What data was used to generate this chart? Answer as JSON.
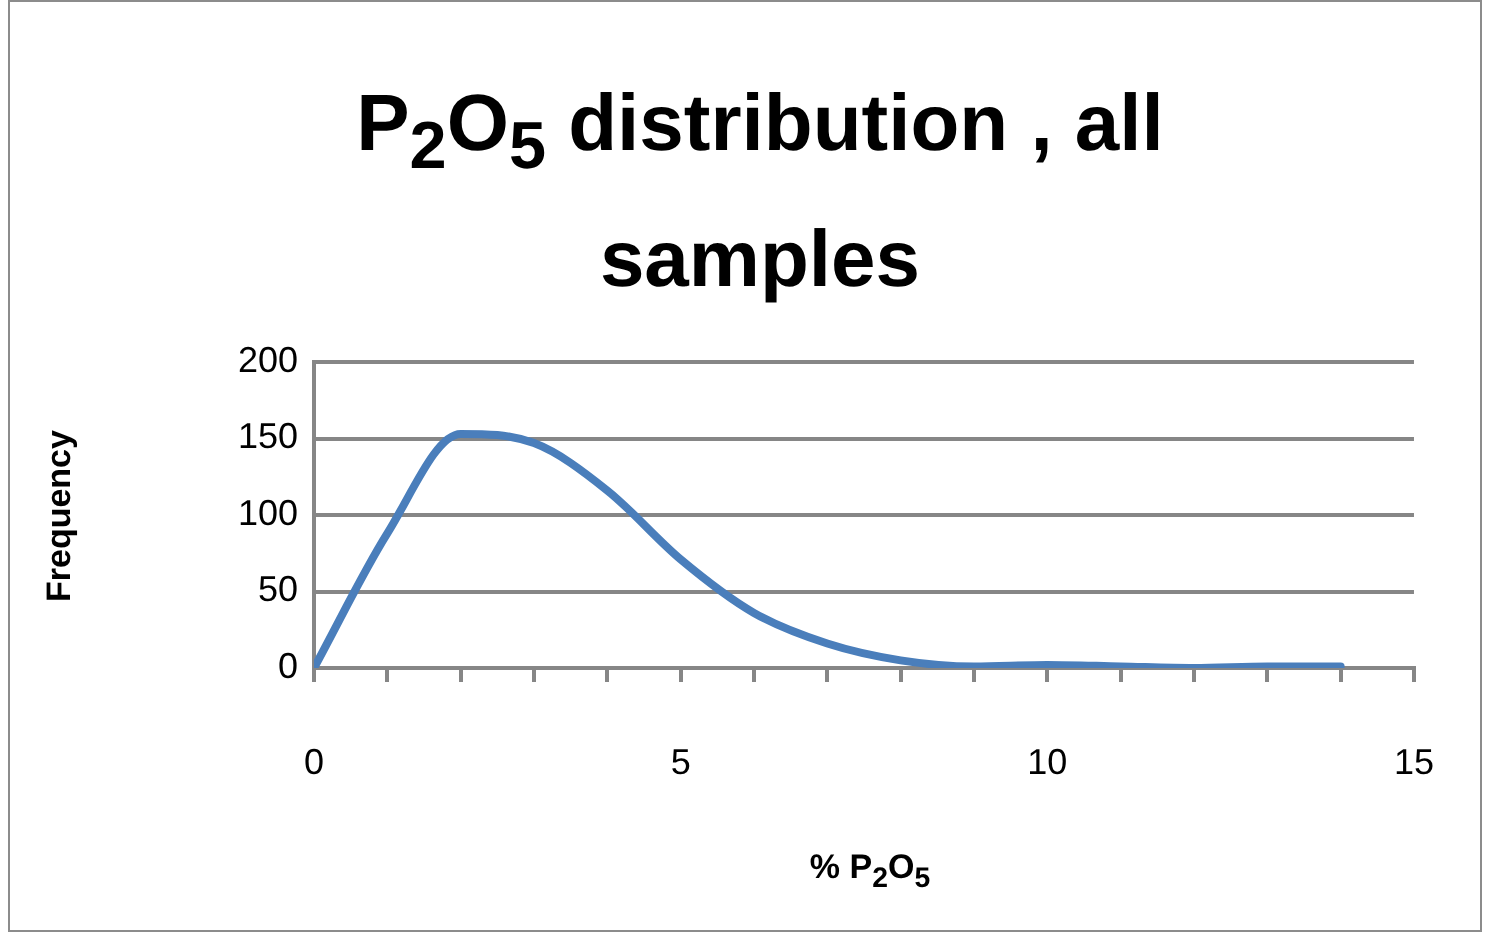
{
  "chart_data": {
    "type": "line",
    "title": "P$_{2}$O$_{5}$ distribution , all samples",
    "xlabel": "% P$_{2}$O$_{5}$",
    "ylabel": "Frequency",
    "x": [
      0,
      1,
      2,
      3,
      4,
      5,
      6,
      7,
      8,
      9,
      10,
      11,
      12,
      13,
      14
    ],
    "series": [
      {
        "color": "#4a7ebb",
        "values": [
          0,
          88,
          153,
          147,
          116,
          71,
          36,
          16,
          5,
          1,
          2,
          1,
          0,
          1,
          1
        ]
      }
    ],
    "xlim": [
      0,
      15
    ],
    "xticks": [
      0,
      {
        "value": 1,
        "label": null
      },
      {
        "value": 2,
        "label": null
      },
      {
        "value": 3,
        "label": null
      },
      {
        "value": 4,
        "label": null
      },
      5,
      {
        "value": 6,
        "label": null
      },
      {
        "value": 7,
        "label": null
      },
      {
        "value": 8,
        "label": null
      },
      {
        "value": 9,
        "label": null
      },
      10,
      {
        "value": 11,
        "label": null
      },
      {
        "value": 12,
        "label": null
      },
      {
        "value": 13,
        "label": null
      },
      {
        "value": 14,
        "label": null
      },
      15
    ],
    "ylim": [
      0,
      200
    ],
    "yticks": [
      0,
      50,
      100,
      150,
      200
    ],
    "grid": "y",
    "legend": false,
    "marker": "none",
    "line_style": "solid"
  }
}
